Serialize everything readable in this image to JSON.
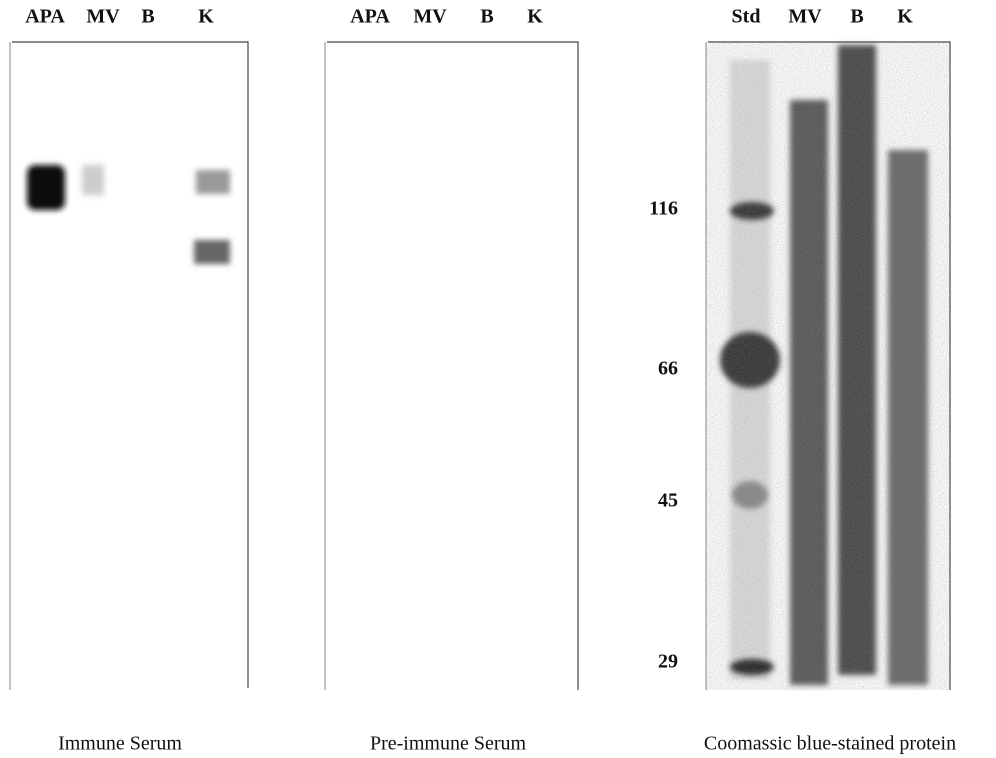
{
  "panels": [
    {
      "lanes": [
        "APA",
        "MV",
        "B",
        "K"
      ],
      "caption": "Immune Serum"
    },
    {
      "lanes": [
        "APA",
        "MV",
        "B",
        "K"
      ],
      "caption": "Pre-immune Serum"
    },
    {
      "lanes": [
        "Std",
        "MV",
        "B",
        "K"
      ],
      "markers": [
        116,
        66,
        45,
        29
      ],
      "caption": "Coomassic blue-stained protein"
    }
  ]
}
